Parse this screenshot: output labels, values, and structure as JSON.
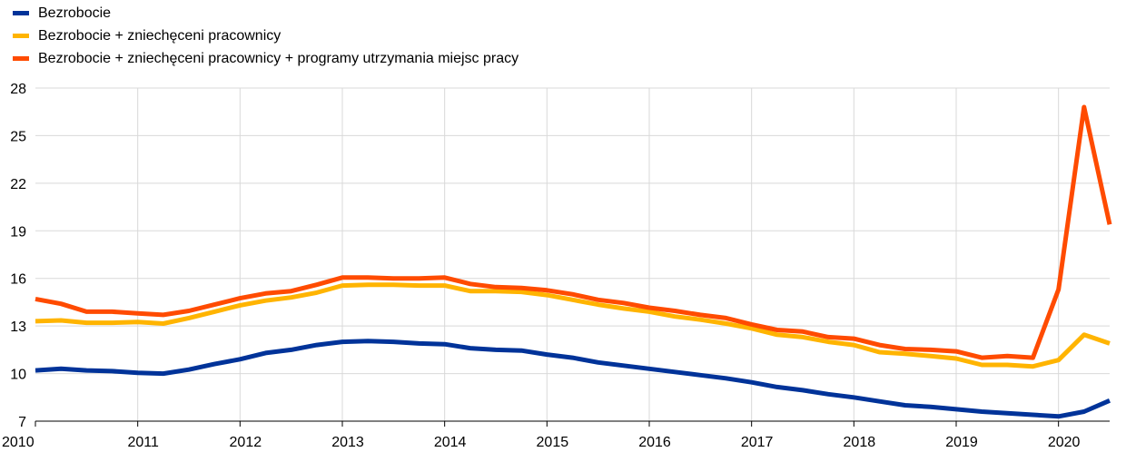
{
  "chart_data": {
    "type": "line",
    "title": "",
    "xlabel": "",
    "ylabel": "",
    "ylim": [
      7,
      28
    ],
    "xlim": [
      2010.0,
      2020.5
    ],
    "y_ticks": [
      7,
      10,
      13,
      16,
      19,
      22,
      25,
      28
    ],
    "x_ticks": [
      2010,
      2011,
      2012,
      2013,
      2014,
      2015,
      2016,
      2017,
      2018,
      2019,
      2020
    ],
    "y_tick_labels": [
      "7",
      "10",
      "13",
      "16",
      "19",
      "22",
      "25",
      "28"
    ],
    "x_tick_labels": [
      "2010",
      "2011",
      "2012",
      "2013",
      "2014",
      "2015",
      "2016",
      "2017",
      "2018",
      "2019",
      "2020"
    ],
    "grid": "horizontal and vertical",
    "legend_position": "top-left",
    "x": [
      2010.0,
      2010.25,
      2010.5,
      2010.75,
      2011.0,
      2011.25,
      2011.5,
      2011.75,
      2012.0,
      2012.25,
      2012.5,
      2012.75,
      2013.0,
      2013.25,
      2013.5,
      2013.75,
      2014.0,
      2014.25,
      2014.5,
      2014.75,
      2015.0,
      2015.25,
      2015.5,
      2015.75,
      2016.0,
      2016.25,
      2016.5,
      2016.75,
      2017.0,
      2017.25,
      2017.5,
      2017.75,
      2018.0,
      2018.25,
      2018.5,
      2018.75,
      2019.0,
      2019.25,
      2019.5,
      2019.75,
      2020.0,
      2020.25,
      2020.5
    ],
    "series": [
      {
        "name": "Bezrobocie",
        "color": "#003399",
        "values": [
          10.2,
          10.3,
          10.2,
          10.15,
          10.05,
          10.0,
          10.25,
          10.6,
          10.9,
          11.3,
          11.5,
          11.8,
          12.0,
          12.05,
          12.0,
          11.9,
          11.85,
          11.6,
          11.5,
          11.45,
          11.2,
          11.0,
          10.7,
          10.5,
          10.3,
          10.1,
          9.9,
          9.7,
          9.45,
          9.15,
          8.95,
          8.7,
          8.5,
          8.25,
          8.0,
          7.9,
          7.75,
          7.6,
          7.5,
          7.4,
          7.3,
          7.6,
          8.3
        ]
      },
      {
        "name": "Bezrobocie + zniechęceni pracownicy",
        "color": "#ffb400",
        "values": [
          13.3,
          13.35,
          13.2,
          13.2,
          13.25,
          13.15,
          13.5,
          13.9,
          14.3,
          14.6,
          14.8,
          15.1,
          15.55,
          15.6,
          15.6,
          15.55,
          15.55,
          15.2,
          15.2,
          15.15,
          14.95,
          14.65,
          14.35,
          14.1,
          13.9,
          13.6,
          13.4,
          13.15,
          12.85,
          12.45,
          12.3,
          12.0,
          11.8,
          11.35,
          11.25,
          11.1,
          10.95,
          10.55,
          10.55,
          10.45,
          10.85,
          12.45,
          11.9
        ]
      },
      {
        "name": "Bezrobocie + zniechęceni pracownicy + programy utrzymania miejsc pracy",
        "color": "#ff4b00",
        "values": [
          14.7,
          14.4,
          13.9,
          13.9,
          13.8,
          13.7,
          13.95,
          14.35,
          14.75,
          15.05,
          15.2,
          15.6,
          16.05,
          16.05,
          16.0,
          16.0,
          16.05,
          15.65,
          15.45,
          15.4,
          15.25,
          15.0,
          14.65,
          14.45,
          14.15,
          13.95,
          13.7,
          13.5,
          13.1,
          12.75,
          12.65,
          12.3,
          12.2,
          11.8,
          11.55,
          11.5,
          11.4,
          11.0,
          11.1,
          11.0,
          15.3,
          26.8,
          19.4
        ]
      }
    ]
  }
}
